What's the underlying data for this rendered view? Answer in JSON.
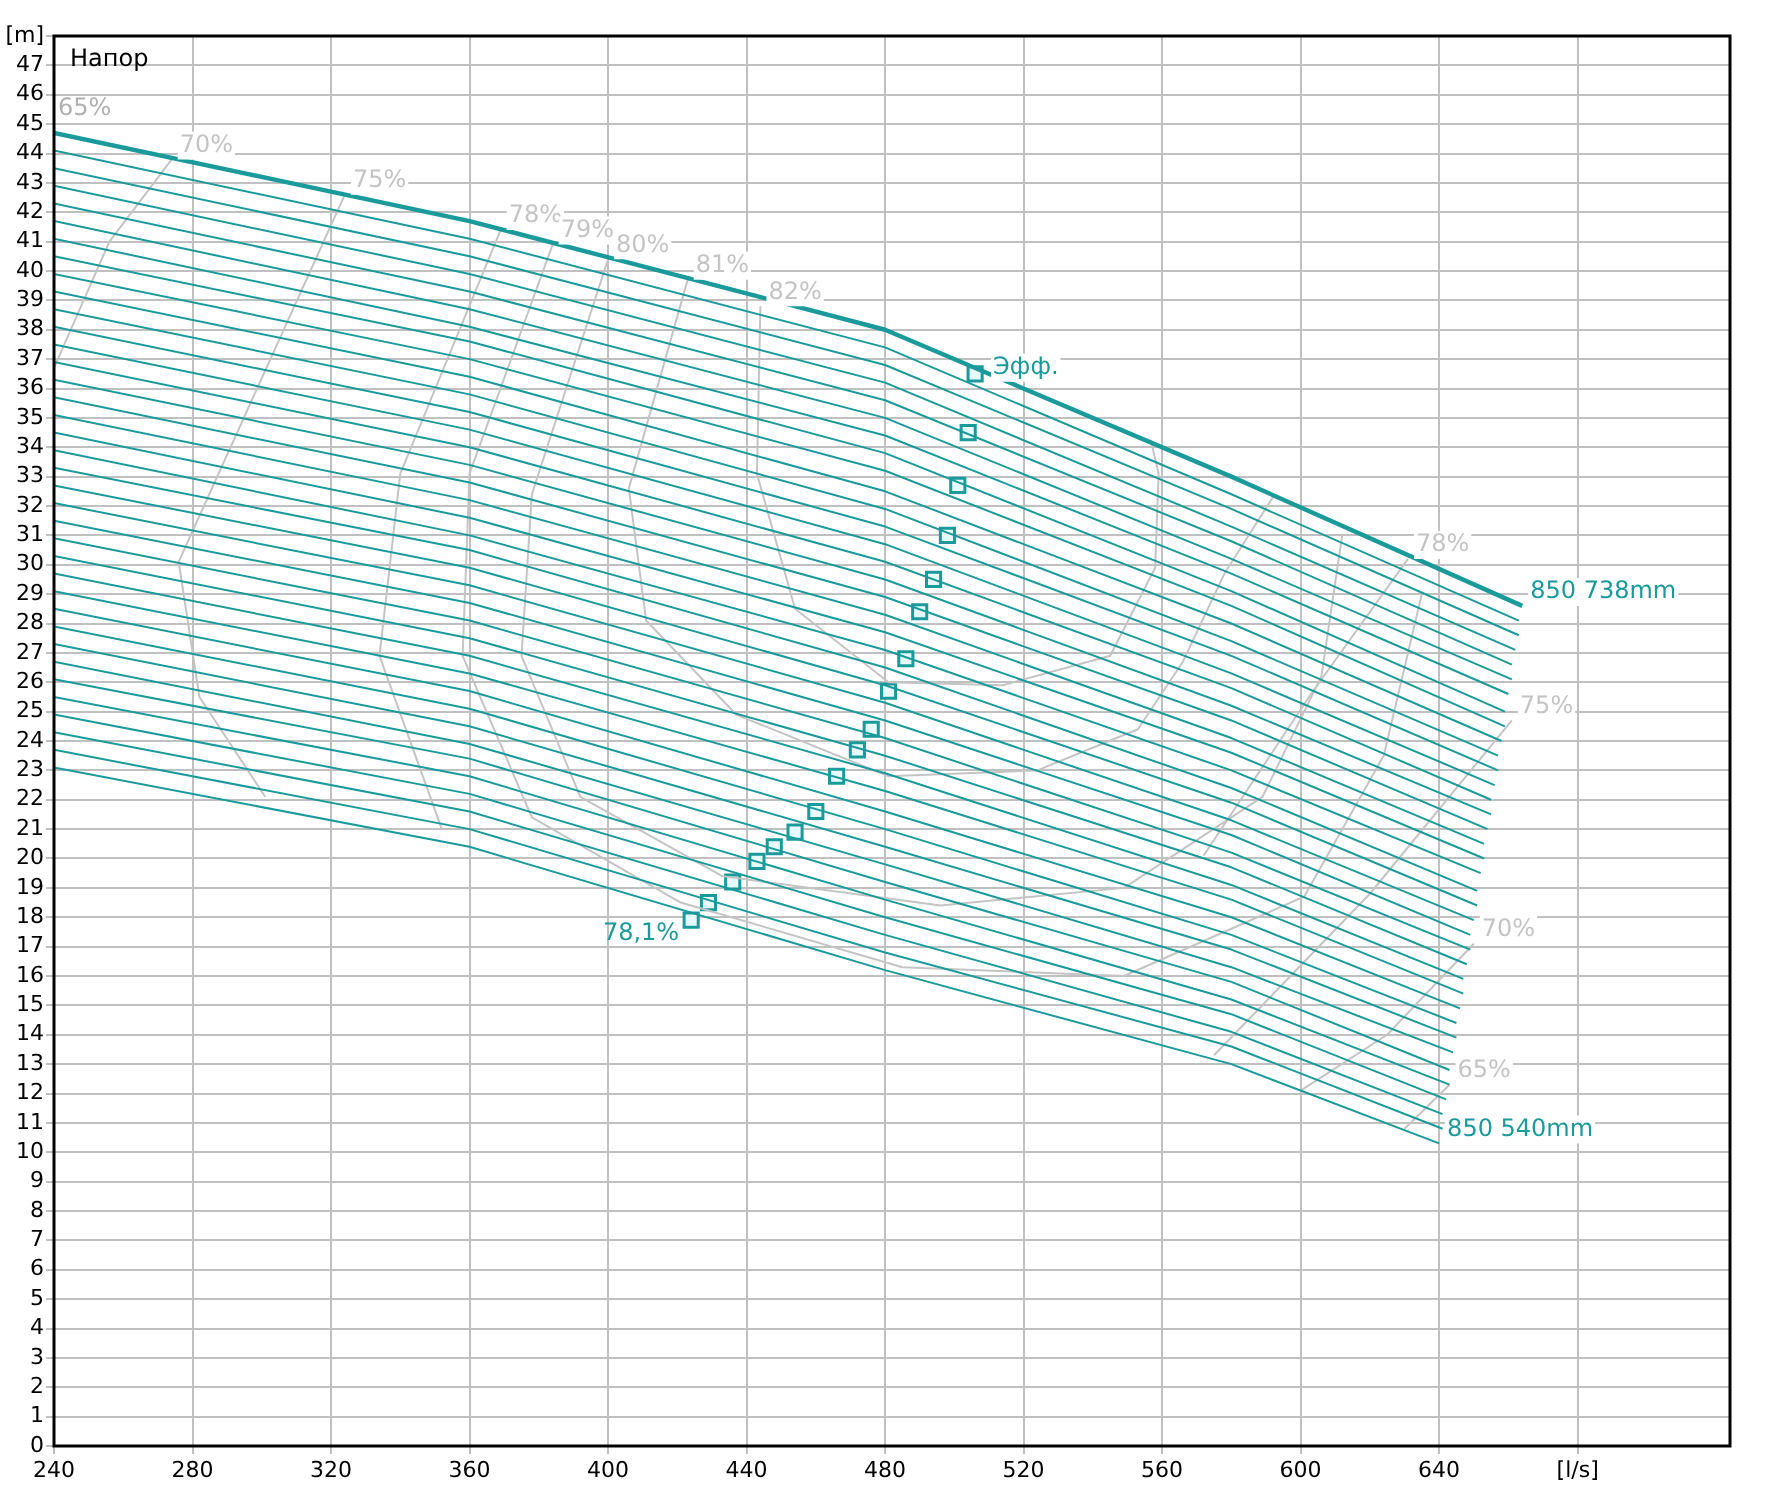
{
  "chart_data": {
    "type": "line",
    "title": "Напор",
    "xlim": [
      240,
      724
    ],
    "ylim": [
      0,
      48
    ],
    "xticks": [
      240,
      280,
      320,
      360,
      400,
      440,
      480,
      520,
      560,
      600,
      640,
      {
        "value": 680,
        "label": "[l/s]"
      }
    ],
    "yticks": [
      0,
      1,
      2,
      3,
      4,
      5,
      6,
      7,
      8,
      9,
      10,
      11,
      12,
      13,
      14,
      15,
      16,
      17,
      18,
      19,
      20,
      21,
      22,
      23,
      24,
      25,
      26,
      27,
      28,
      29,
      30,
      31,
      32,
      33,
      34,
      35,
      36,
      37,
      38,
      39,
      40,
      41,
      42,
      43,
      44,
      45,
      46,
      47,
      {
        "value": 48,
        "label": "[m]"
      }
    ],
    "grid": true,
    "legend": false,
    "marker": "none",
    "annotations": [
      "65%",
      {
        "text": "78,1%",
        "x": 424,
        "y": 17.9
      }
    ],
    "series": [
      {
        "name": "850 738mm",
        "color": "#1a9a9a",
        "x": [
          240,
          360,
          480,
          580,
          664
        ],
        "values": [
          44.7,
          41.7,
          38.0,
          33.0,
          28.6
        ]
      },
      {
        "color": "#1a9a9a",
        "x": [
          240,
          360,
          480,
          580,
          663
        ],
        "values": [
          44.1,
          41.1,
          37.4,
          32.4,
          28.1
        ]
      },
      {
        "color": "#1a9a9a",
        "x": [
          240,
          360,
          480,
          580,
          663
        ],
        "values": [
          43.5,
          40.5,
          36.8,
          31.9,
          27.6
        ]
      },
      {
        "color": "#1a9a9a",
        "x": [
          240,
          360,
          480,
          580,
          662
        ],
        "values": [
          42.9,
          39.9,
          36.2,
          31.3,
          27.1
        ]
      },
      {
        "color": "#1a9a9a",
        "x": [
          240,
          360,
          480,
          580,
          661
        ],
        "values": [
          42.3,
          39.3,
          35.6,
          30.8,
          26.6
        ]
      },
      {
        "color": "#1a9a9a",
        "x": [
          240,
          360,
          480,
          580,
          661
        ],
        "values": [
          41.7,
          38.7,
          35.0,
          30.2,
          26.1
        ]
      },
      {
        "color": "#1a9a9a",
        "x": [
          240,
          360,
          480,
          580,
          660
        ],
        "values": [
          41.1,
          38.1,
          34.4,
          29.7,
          25.6
        ]
      },
      {
        "color": "#1a9a9a",
        "x": [
          240,
          360,
          480,
          580,
          659
        ],
        "values": [
          40.5,
          37.6,
          33.8,
          29.1,
          25.0
        ]
      },
      {
        "color": "#1a9a9a",
        "x": [
          240,
          360,
          480,
          580,
          659
        ],
        "values": [
          39.9,
          37.0,
          33.2,
          28.6,
          24.5
        ]
      },
      {
        "color": "#1a9a9a",
        "x": [
          240,
          360,
          480,
          580,
          658
        ],
        "values": [
          39.3,
          36.4,
          32.5,
          28.0,
          24.0
        ]
      },
      {
        "color": "#1a9a9a",
        "x": [
          240,
          360,
          480,
          580,
          657
        ],
        "values": [
          38.7,
          35.8,
          31.9,
          27.4,
          23.5
        ]
      },
      {
        "color": "#1a9a9a",
        "x": [
          240,
          360,
          480,
          580,
          657
        ],
        "values": [
          38.1,
          35.2,
          31.3,
          26.9,
          23.0
        ]
      },
      {
        "color": "#1a9a9a",
        "x": [
          240,
          360,
          480,
          580,
          656
        ],
        "values": [
          37.5,
          34.6,
          30.7,
          26.3,
          22.5
        ]
      },
      {
        "color": "#1a9a9a",
        "x": [
          240,
          360,
          480,
          580,
          655
        ],
        "values": [
          36.9,
          34.0,
          30.1,
          25.8,
          22.0
        ]
      },
      {
        "color": "#1a9a9a",
        "x": [
          240,
          360,
          480,
          580,
          655
        ],
        "values": [
          36.3,
          33.4,
          29.5,
          25.2,
          21.5
        ]
      },
      {
        "color": "#1a9a9a",
        "x": [
          240,
          360,
          480,
          580,
          654
        ],
        "values": [
          35.7,
          32.8,
          28.9,
          24.7,
          21.0
        ]
      },
      {
        "color": "#1a9a9a",
        "x": [
          240,
          360,
          480,
          580,
          653
        ],
        "values": [
          35.1,
          32.2,
          28.3,
          24.1,
          20.5
        ]
      },
      {
        "color": "#1a9a9a",
        "x": [
          240,
          360,
          480,
          580,
          653
        ],
        "values": [
          34.5,
          31.6,
          27.7,
          23.6,
          20.0
        ]
      },
      {
        "color": "#1a9a9a",
        "x": [
          240,
          360,
          480,
          580,
          652
        ],
        "values": [
          33.9,
          31.0,
          27.1,
          23.0,
          19.5
        ]
      },
      {
        "color": "#1a9a9a",
        "x": [
          240,
          360,
          480,
          580,
          651
        ],
        "values": [
          33.3,
          30.5,
          26.5,
          22.4,
          18.9
        ]
      },
      {
        "color": "#1a9a9a",
        "x": [
          240,
          360,
          480,
          580,
          651
        ],
        "values": [
          32.7,
          29.9,
          25.9,
          21.9,
          18.4
        ]
      },
      {
        "color": "#1a9a9a",
        "x": [
          240,
          360,
          480,
          580,
          650
        ],
        "values": [
          32.1,
          29.3,
          25.3,
          21.3,
          17.9
        ]
      },
      {
        "color": "#1a9a9a",
        "x": [
          240,
          360,
          480,
          580,
          649
        ],
        "values": [
          31.5,
          28.7,
          24.7,
          20.8,
          17.4
        ]
      },
      {
        "color": "#1a9a9a",
        "x": [
          240,
          360,
          480,
          580,
          649
        ],
        "values": [
          30.9,
          28.1,
          24.1,
          20.2,
          16.9
        ]
      },
      {
        "color": "#1a9a9a",
        "x": [
          240,
          360,
          480,
          580,
          648
        ],
        "values": [
          30.3,
          27.5,
          23.5,
          19.7,
          16.4
        ]
      },
      {
        "color": "#1a9a9a",
        "x": [
          240,
          360,
          480,
          580,
          647
        ],
        "values": [
          29.7,
          26.9,
          22.9,
          19.1,
          15.9
        ]
      },
      {
        "color": "#1a9a9a",
        "x": [
          240,
          360,
          480,
          580,
          647
        ],
        "values": [
          29.1,
          26.3,
          22.3,
          18.6,
          15.4
        ]
      },
      {
        "color": "#1a9a9a",
        "x": [
          240,
          360,
          480,
          580,
          646
        ],
        "values": [
          28.5,
          25.7,
          21.6,
          18.0,
          14.9
        ]
      },
      {
        "color": "#1a9a9a",
        "x": [
          240,
          360,
          480,
          580,
          645
        ],
        "values": [
          27.9,
          25.1,
          21.0,
          17.4,
          14.4
        ]
      },
      {
        "color": "#1a9a9a",
        "x": [
          240,
          360,
          480,
          580,
          645
        ],
        "values": [
          27.3,
          24.5,
          20.4,
          16.9,
          13.9
        ]
      },
      {
        "color": "#1a9a9a",
        "x": [
          240,
          360,
          480,
          580,
          644
        ],
        "values": [
          26.7,
          23.9,
          19.8,
          16.3,
          13.4
        ]
      },
      {
        "color": "#1a9a9a",
        "x": [
          240,
          360,
          480,
          580,
          643
        ],
        "values": [
          26.1,
          23.4,
          19.2,
          15.8,
          12.8
        ]
      },
      {
        "color": "#1a9a9a",
        "x": [
          240,
          360,
          480,
          580,
          643
        ],
        "values": [
          25.5,
          22.8,
          18.6,
          15.2,
          12.3
        ]
      },
      {
        "color": "#1a9a9a",
        "x": [
          240,
          360,
          480,
          580,
          642
        ],
        "values": [
          24.9,
          22.2,
          18.0,
          14.7,
          11.8
        ]
      },
      {
        "color": "#1a9a9a",
        "x": [
          240,
          360,
          480,
          580,
          641
        ],
        "values": [
          24.3,
          21.6,
          17.4,
          14.1,
          11.3
        ]
      },
      {
        "color": "#1a9a9a",
        "x": [
          240,
          360,
          480,
          580,
          641
        ],
        "values": [
          23.7,
          21.0,
          16.8,
          13.6,
          10.8
        ]
      },
      {
        "name": "850 540mm",
        "color": "#1a9a9a",
        "x": [
          240,
          360,
          480,
          580,
          640
        ],
        "values": [
          23.1,
          20.4,
          16.2,
          13.0,
          10.3
        ]
      },
      {
        "name": "70%",
        "color": "#c4c4c4",
        "x": [
          240,
          256,
          274
        ],
        "values": [
          36.7,
          41.0,
          43.8
        ]
      },
      {
        "name": "75%",
        "color": "#c4c4c4",
        "x": [
          301,
          282,
          276,
          324
        ],
        "values": [
          22.1,
          25.5,
          30.1,
          42.6
        ]
      },
      {
        "name": "78%",
        "color": "#c4c4c4",
        "x": [
          352,
          334,
          340,
          369
        ],
        "values": [
          21.0,
          26.9,
          33.1,
          41.4
        ]
      },
      {
        "name": "79%",
        "color": "#c4c4c4",
        "x": [
          635,
          624,
          601,
          549,
          485,
          421,
          378,
          358,
          360,
          384
        ],
        "values": [
          29.0,
          23.5,
          18.7,
          16.0,
          16.3,
          18.5,
          21.4,
          26.9,
          33.1,
          40.9
        ]
      },
      {
        "name": "80%",
        "color": "#c4c4c4",
        "x": [
          612,
          606,
          589,
          549,
          496,
          433,
          392,
          375,
          378,
          400
        ],
        "values": [
          31.0,
          26.2,
          22.1,
          19.0,
          18.4,
          19.4,
          22.1,
          26.9,
          32.4,
          40.4
        ]
      },
      {
        "name": "81%",
        "color": "#c4c4c4",
        "x": [
          592,
          578,
          566,
          553,
          524,
          481,
          437,
          411,
          406,
          423
        ],
        "values": [
          32.3,
          29.7,
          26.7,
          24.4,
          23.0,
          22.8,
          24.9,
          28.1,
          32.6,
          39.7
        ]
      },
      {
        "name": "82%",
        "color": "#c4c4c4",
        "x": [
          557,
          559,
          558,
          545,
          514,
          481,
          454,
          443,
          444
        ],
        "values": [
          34.1,
          33.1,
          29.9,
          26.9,
          25.9,
          26.0,
          28.5,
          33.1,
          38.8
        ]
      },
      {
        "name": "78%",
        "color": "#c4c4c4",
        "x": [
          572,
          603,
          631
        ],
        "values": [
          20.1,
          25.6,
          30.2
        ]
      },
      {
        "name": "75%",
        "color": "#c4c4c4",
        "x": [
          575,
          620,
          661
        ],
        "values": [
          13.3,
          18.8,
          24.7
        ]
      },
      {
        "name": "70%",
        "color": "#c4c4c4",
        "x": [
          600,
          625,
          650
        ],
        "values": [
          12.1,
          14.0,
          17.1
        ]
      },
      {
        "name": "65%",
        "color": "#c4c4c4",
        "x": [
          630,
          643
        ],
        "values": [
          10.8,
          12.3
        ]
      },
      {
        "name": "Эфф.",
        "type": "scatter",
        "marker": "square",
        "color": "#1a9a9a",
        "x": [
          424,
          429,
          436,
          443,
          448,
          454,
          460,
          466,
          472,
          476,
          481,
          486,
          490,
          494,
          498,
          501,
          504,
          506
        ],
        "values": [
          17.9,
          18.5,
          19.2,
          19.9,
          20.4,
          20.9,
          21.6,
          22.8,
          23.7,
          24.4,
          25.7,
          26.8,
          28.4,
          29.5,
          31.0,
          32.7,
          34.5,
          36.5
        ]
      }
    ]
  }
}
